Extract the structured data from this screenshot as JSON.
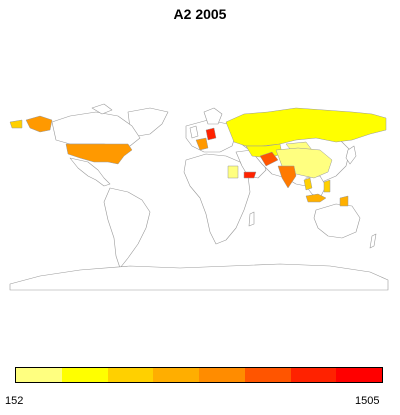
{
  "title": "A2 2005",
  "legend": {
    "min_label": "152",
    "max_label": "1505",
    "colors": [
      "#ffff80",
      "#ffff00",
      "#ffd000",
      "#ffae00",
      "#ff8c00",
      "#ff5500",
      "#ff2200",
      "#ff0000"
    ]
  },
  "map_colors": {
    "land_fill": "#ffffff",
    "border": "#9a9a9a",
    "russia": "#ffff00",
    "usa": "#ff9900",
    "alaska": "#ff9900",
    "canada_arctic_patch": "#ffd000",
    "france": "#ff9900",
    "germany": "#ff2200",
    "afghanistan": "#ff5500",
    "yemen": "#ff2200",
    "india": "#ff7a00",
    "china": "#ffff80",
    "sudan": "#ffff80",
    "southeast_asia": "#ffd000",
    "indonesia": "#ffb000",
    "mongolia": "#ffff80",
    "kazakhstan": "#ffff00"
  }
}
